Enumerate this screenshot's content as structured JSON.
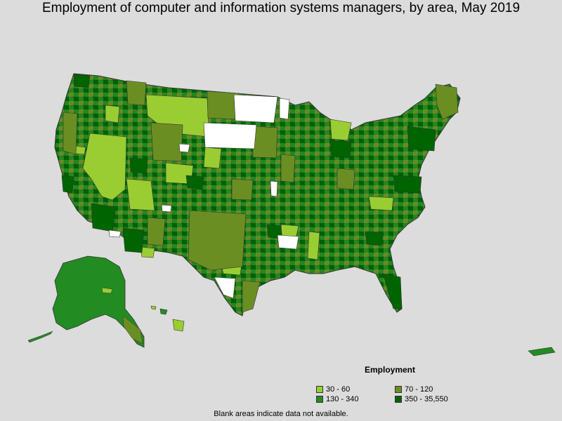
{
  "title": "Employment of computer and information systems managers, by area, May 2019",
  "legend": {
    "title": "Employment",
    "items": [
      {
        "label": "30 - 60",
        "color": "#9acd32"
      },
      {
        "label": "70 - 120",
        "color": "#6b8e23"
      },
      {
        "label": "130 - 340",
        "color": "#228b22"
      },
      {
        "label": "350 - 35,550",
        "color": "#006400"
      }
    ]
  },
  "footnote": "Blank areas indicate data not available.",
  "colors": {
    "background": "#dcdcdc",
    "no_data": "#ffffff",
    "border": "#333333"
  }
}
